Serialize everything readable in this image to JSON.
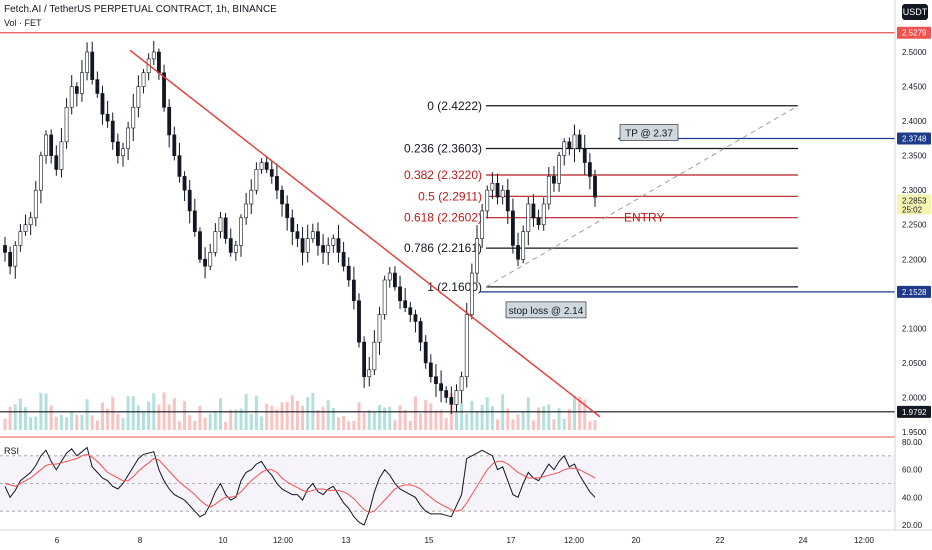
{
  "header": {
    "title": "Fetch.AI / TetherUS PERPETUAL CONTRACT, 1h, BINANCE",
    "volume_label": "Vol · FET",
    "currency_button": "USDT"
  },
  "rsi_label": "RSI",
  "colors": {
    "up": "#26a69a",
    "down": "#ef5350",
    "trendline": "#e53935",
    "fib_black": "#131722",
    "fib_red": "#b71c1c",
    "tp_blue": "#1e3a8a",
    "rsi_line": "#131722",
    "rsi_ma": "#ef5350"
  },
  "chart_data": {
    "type": "candlestick",
    "symbol": "FETUSDT.P",
    "interval": "1h",
    "y_ticks": [
      "2.5000",
      "2.4500",
      "2.4000",
      "2.3500",
      "2.3000",
      "2.2500",
      "2.2000",
      "2.1500",
      "2.1000",
      "2.0500",
      "2.0000",
      "1.9500"
    ],
    "ylim": [
      1.93,
      2.54
    ],
    "x_ticks": [
      "6",
      "8",
      "10",
      "12:00",
      "13",
      "15",
      "17",
      "12:00",
      "20",
      "22",
      "24",
      "12:00"
    ],
    "price_badges": [
      {
        "value": "2.5279",
        "color": "#ef5350"
      },
      {
        "value": "2.3748",
        "color": "#1e3a8a"
      },
      {
        "value": "2.2853",
        "sub": "25:02",
        "color": "#f5f5b0"
      },
      {
        "value": "2.1528",
        "color": "#1e3a8a"
      },
      {
        "value": "1.9792",
        "color": "#131722"
      }
    ],
    "fib_levels": [
      {
        "label": "0 (2.4222)",
        "value": 2.4222,
        "color": "black"
      },
      {
        "label": "0.236 (2.3603)",
        "value": 2.3603,
        "color": "black"
      },
      {
        "label": "0.382 (2.3220)",
        "value": 2.322,
        "color": "red"
      },
      {
        "label": "0.5 (2.2911)",
        "value": 2.2911,
        "color": "red"
      },
      {
        "label": "0.618 (2.2602)",
        "value": 2.2602,
        "color": "red"
      },
      {
        "label": "0.786 (2.2161)",
        "value": 2.2161,
        "color": "black"
      },
      {
        "label": "1 (2.1600)",
        "value": 2.16,
        "color": "black"
      }
    ],
    "annotations": {
      "tp": "TP @ 2.37",
      "entry": "ENTRY",
      "stop": "stop loss @ 2.14"
    },
    "horizontal_lines": [
      {
        "value": 2.5279,
        "color": "#ef5350"
      },
      {
        "value": 2.3748,
        "color": "#1e3a8a"
      },
      {
        "value": 2.1528,
        "color": "#1e3a8a"
      },
      {
        "value": 1.9792,
        "color": "#131722"
      }
    ],
    "trendline": {
      "from": [
        130,
        2.5025
      ],
      "to": [
        600,
        1.972
      ]
    },
    "closes": [
      2.21,
      2.19,
      2.22,
      2.24,
      2.25,
      2.26,
      2.3,
      2.35,
      2.38,
      2.35,
      2.33,
      2.37,
      2.42,
      2.45,
      2.44,
      2.47,
      2.5,
      2.46,
      2.44,
      2.41,
      2.4,
      2.37,
      2.35,
      2.36,
      2.39,
      2.42,
      2.45,
      2.47,
      2.49,
      2.5,
      2.47,
      2.42,
      2.38,
      2.35,
      2.32,
      2.3,
      2.27,
      2.24,
      2.2,
      2.19,
      2.21,
      2.24,
      2.26,
      2.23,
      2.21,
      2.22,
      2.26,
      2.28,
      2.3,
      2.33,
      2.34,
      2.33,
      2.32,
      2.3,
      2.28,
      2.26,
      2.24,
      2.23,
      2.21,
      2.23,
      2.24,
      2.22,
      2.21,
      2.22,
      2.23,
      2.21,
      2.19,
      2.17,
      2.14,
      2.08,
      2.03,
      2.04,
      2.08,
      2.12,
      2.17,
      2.18,
      2.16,
      2.14,
      2.13,
      2.12,
      2.11,
      2.08,
      2.05,
      2.03,
      2.02,
      2.01,
      2.0,
      1.99,
      2.01,
      2.03,
      2.12,
      2.18,
      2.23,
      2.27,
      2.3,
      2.31,
      2.29,
      2.3,
      2.27,
      2.22,
      2.2,
      2.24,
      2.28,
      2.26,
      2.25,
      2.28,
      2.32,
      2.31,
      2.35,
      2.37,
      2.36,
      2.38,
      2.36,
      2.34,
      2.32,
      2.29
    ],
    "rsi": {
      "y_ticks": [
        "80.00",
        "60.00",
        "40.00",
        "20.00"
      ],
      "levels": [
        70,
        50,
        30
      ],
      "values": [
        48,
        40,
        45,
        52,
        55,
        58,
        63,
        70,
        74,
        66,
        60,
        66,
        72,
        75,
        70,
        73,
        76,
        62,
        58,
        54,
        52,
        48,
        46,
        50,
        56,
        62,
        68,
        71,
        72,
        73,
        60,
        52,
        46,
        42,
        40,
        38,
        34,
        30,
        26,
        28,
        35,
        44,
        50,
        42,
        38,
        40,
        52,
        58,
        60,
        64,
        66,
        60,
        56,
        50,
        46,
        44,
        42,
        42,
        38,
        46,
        50,
        44,
        42,
        46,
        48,
        42,
        36,
        32,
        26,
        22,
        20,
        30,
        44,
        54,
        60,
        56,
        50,
        46,
        44,
        42,
        40,
        34,
        30,
        28,
        28,
        28,
        27,
        26,
        34,
        42,
        68,
        70,
        72,
        74,
        72,
        70,
        60,
        62,
        52,
        42,
        40,
        50,
        58,
        54,
        52,
        58,
        64,
        60,
        66,
        70,
        62,
        64,
        56,
        50,
        44,
        40
      ],
      "ma": [
        50,
        49,
        48,
        50,
        52,
        54,
        57,
        60,
        63,
        64,
        64,
        65,
        66,
        67,
        68,
        70,
        71,
        69,
        66,
        62,
        58,
        56,
        54,
        52,
        52,
        55,
        59,
        62,
        65,
        68,
        67,
        63,
        59,
        55,
        51,
        48,
        45,
        42,
        38,
        35,
        33,
        35,
        38,
        40,
        40,
        41,
        44,
        48,
        52,
        55,
        58,
        60,
        60,
        58,
        54,
        51,
        49,
        47,
        45,
        44,
        45,
        46,
        46,
        45,
        45,
        45,
        44,
        42,
        39,
        35,
        31,
        29,
        30,
        34,
        38,
        42,
        46,
        48,
        49,
        49,
        48,
        46,
        43,
        40,
        37,
        35,
        33,
        31,
        30,
        31,
        36,
        42,
        48,
        54,
        60,
        64,
        66,
        66,
        64,
        61,
        58,
        56,
        54,
        54,
        54,
        55,
        56,
        57,
        58,
        60,
        61,
        61,
        60,
        58,
        56,
        54
      ]
    }
  }
}
